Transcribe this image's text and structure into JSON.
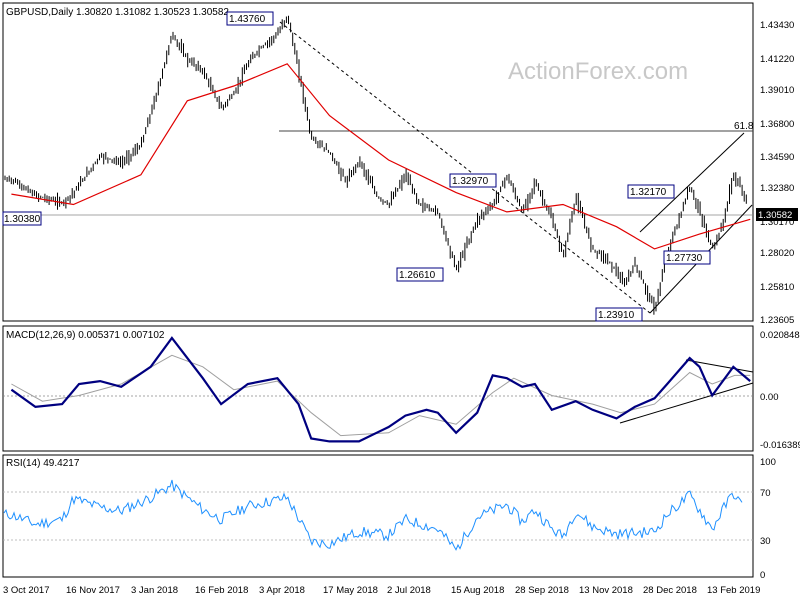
{
  "header": {
    "symbol_line": "GBPUSD,Daily  1.30820 1.31082 1.30523 1.30582",
    "watermark": "ActionForex.com"
  },
  "colors": {
    "candles": "#000000",
    "ma": "#e00000",
    "macd": "#000080",
    "signal": "#a0a0a0",
    "rsi": "#1e90ff",
    "price_box": "#000000"
  },
  "chart_data": [
    {
      "type": "candlestick",
      "title": "GBPUSD,Daily",
      "header_values": [
        "1.30820",
        "1.31082",
        "1.30523",
        "1.30582"
      ],
      "y_ticks": [
        "1.43430",
        "1.41220",
        "1.39010",
        "1.36800",
        "1.34590",
        "1.32380",
        "1.30170",
        "1.28020",
        "1.25810",
        "1.23605"
      ],
      "ylim": [
        1.232,
        1.444
      ],
      "current_price": "1.30582",
      "moving_average": true,
      "annotations": [
        "1.43760",
        "1.32970",
        "1.32170",
        "1.30380",
        "1.27730",
        "1.26610",
        "1.23910",
        "61.8"
      ],
      "close_path": [
        [
          "2017-10-03",
          1.327
        ],
        [
          "2017-10-20",
          1.316
        ],
        [
          "2017-11-08",
          1.311
        ],
        [
          "2017-11-16",
          1.318
        ],
        [
          "2017-12-05",
          1.343
        ],
        [
          "2017-12-20",
          1.338
        ],
        [
          "2018-01-03",
          1.35
        ],
        [
          "2018-01-15",
          1.388
        ],
        [
          "2018-01-25",
          1.425
        ],
        [
          "2018-02-05",
          1.408
        ],
        [
          "2018-02-16",
          1.4
        ],
        [
          "2018-03-01",
          1.375
        ],
        [
          "2018-03-10",
          1.385
        ],
        [
          "2018-03-20",
          1.405
        ],
        [
          "2018-03-28",
          1.415
        ],
        [
          "2018-04-10",
          1.425
        ],
        [
          "2018-04-17",
          1.4376
        ],
        [
          "2018-04-25",
          1.4
        ],
        [
          "2018-05-04",
          1.355
        ],
        [
          "2018-05-17",
          1.345
        ],
        [
          "2018-05-29",
          1.325
        ],
        [
          "2018-06-07",
          1.34
        ],
        [
          "2018-06-20",
          1.315
        ],
        [
          "2018-06-28",
          1.31
        ],
        [
          "2018-07-10",
          1.33
        ],
        [
          "2018-07-20",
          1.31
        ],
        [
          "2018-08-02",
          1.305
        ],
        [
          "2018-08-15",
          1.2661
        ],
        [
          "2018-08-30",
          1.3
        ],
        [
          "2018-09-10",
          1.31
        ],
        [
          "2018-09-20",
          1.3297
        ],
        [
          "2018-10-01",
          1.305
        ],
        [
          "2018-10-10",
          1.325
        ],
        [
          "2018-10-22",
          1.3
        ],
        [
          "2018-10-30",
          1.275
        ],
        [
          "2018-11-08",
          1.315
        ],
        [
          "2018-11-20",
          1.28
        ],
        [
          "2018-11-28",
          1.275
        ],
        [
          "2018-12-07",
          1.265
        ],
        [
          "2018-12-12",
          1.255
        ],
        [
          "2018-12-20",
          1.27
        ],
        [
          "2019-01-03",
          1.2391
        ],
        [
          "2019-01-12",
          1.2773
        ],
        [
          "2019-01-22",
          1.305
        ],
        [
          "2019-01-28",
          1.3217
        ],
        [
          "2019-02-04",
          1.305
        ],
        [
          "2019-02-13",
          1.28
        ],
        [
          "2019-02-20",
          1.295
        ],
        [
          "2019-02-28",
          1.33
        ],
        [
          "2019-03-06",
          1.32
        ],
        [
          "2019-03-12",
          1.3058
        ]
      ],
      "ma_path": [
        [
          "2017-10-03",
          1.317
        ],
        [
          "2017-11-16",
          1.31
        ],
        [
          "2018-01-03",
          1.33
        ],
        [
          "2018-02-05",
          1.38
        ],
        [
          "2018-03-10",
          1.39
        ],
        [
          "2018-04-17",
          1.405
        ],
        [
          "2018-05-17",
          1.37
        ],
        [
          "2018-06-28",
          1.34
        ],
        [
          "2018-08-15",
          1.318
        ],
        [
          "2018-09-20",
          1.305
        ],
        [
          "2018-10-30",
          1.31
        ],
        [
          "2018-12-07",
          1.295
        ],
        [
          "2019-01-03",
          1.28
        ],
        [
          "2019-02-04",
          1.29
        ],
        [
          "2019-03-12",
          1.3
        ]
      ]
    },
    {
      "type": "line",
      "title": "MACD(12,26,9) 0.005371 0.007102",
      "y_ticks": [
        "0.020848",
        "0.00",
        "-0.016389"
      ],
      "ylim": [
        -0.019,
        0.0235
      ],
      "series": [
        {
          "name": "MACD",
          "points": [
            [
              "2017-10-03",
              0.002
            ],
            [
              "2017-10-20",
              -0.004
            ],
            [
              "2017-11-08",
              -0.003
            ],
            [
              "2017-11-20",
              0.004
            ],
            [
              "2017-12-05",
              0.005
            ],
            [
              "2017-12-20",
              0.003
            ],
            [
              "2018-01-10",
              0.01
            ],
            [
              "2018-01-25",
              0.02
            ],
            [
              "2018-02-16",
              0.006
            ],
            [
              "2018-03-01",
              -0.003
            ],
            [
              "2018-03-20",
              0.004
            ],
            [
              "2018-04-10",
              0.006
            ],
            [
              "2018-04-25",
              -0.003
            ],
            [
              "2018-05-04",
              -0.015
            ],
            [
              "2018-05-17",
              -0.016
            ],
            [
              "2018-06-07",
              -0.016
            ],
            [
              "2018-06-28",
              -0.011
            ],
            [
              "2018-07-10",
              -0.007
            ],
            [
              "2018-07-25",
              -0.005
            ],
            [
              "2018-08-02",
              -0.006
            ],
            [
              "2018-08-15",
              -0.013
            ],
            [
              "2018-08-30",
              -0.006
            ],
            [
              "2018-09-10",
              0.007
            ],
            [
              "2018-09-20",
              0.006
            ],
            [
              "2018-10-01",
              0.003
            ],
            [
              "2018-10-10",
              0.004
            ],
            [
              "2018-10-22",
              -0.005
            ],
            [
              "2018-11-08",
              -0.002
            ],
            [
              "2018-11-20",
              -0.005
            ],
            [
              "2018-12-07",
              -0.008
            ],
            [
              "2018-12-20",
              -0.004
            ],
            [
              "2019-01-03",
              -0.001
            ],
            [
              "2019-01-12",
              0.004
            ],
            [
              "2019-01-28",
              0.013
            ],
            [
              "2019-02-04",
              0.01
            ],
            [
              "2019-02-13",
              0.0
            ],
            [
              "2019-02-28",
              0.01
            ],
            [
              "2019-03-12",
              0.005
            ]
          ]
        },
        {
          "name": "Signal",
          "points": [
            [
              "2017-10-03",
              0.004
            ],
            [
              "2017-10-25",
              -0.002
            ],
            [
              "2017-11-20",
              0.0
            ],
            [
              "2017-12-20",
              0.004
            ],
            [
              "2018-01-25",
              0.014
            ],
            [
              "2018-02-16",
              0.01
            ],
            [
              "2018-03-10",
              0.002
            ],
            [
              "2018-04-10",
              0.005
            ],
            [
              "2018-05-04",
              -0.006
            ],
            [
              "2018-05-25",
              -0.014
            ],
            [
              "2018-06-28",
              -0.013
            ],
            [
              "2018-07-20",
              -0.007
            ],
            [
              "2018-08-15",
              -0.01
            ],
            [
              "2018-09-10",
              0.001
            ],
            [
              "2018-09-25",
              0.006
            ],
            [
              "2018-10-22",
              0.0
            ],
            [
              "2018-11-20",
              -0.003
            ],
            [
              "2018-12-10",
              -0.006
            ],
            [
              "2019-01-03",
              -0.003
            ],
            [
              "2019-01-28",
              0.008
            ],
            [
              "2019-02-13",
              0.004
            ],
            [
              "2019-03-01",
              0.007
            ],
            [
              "2019-03-12",
              0.007
            ]
          ]
        }
      ]
    },
    {
      "type": "line",
      "title": "RSI(14) 49.4217",
      "y_ticks": [
        "100",
        "70",
        "30",
        "0"
      ],
      "ylim": [
        0,
        100
      ],
      "series": [
        {
          "name": "RSI",
          "points": [
            [
              "2017-10-03",
              52
            ],
            [
              "2017-10-20",
              44
            ],
            [
              "2017-11-08",
              48
            ],
            [
              "2017-11-16",
              65
            ],
            [
              "2017-12-05",
              58
            ],
            [
              "2017-12-20",
              55
            ],
            [
              "2018-01-10",
              66
            ],
            [
              "2018-01-25",
              76
            ],
            [
              "2018-02-16",
              56
            ],
            [
              "2018-03-01",
              48
            ],
            [
              "2018-03-20",
              59
            ],
            [
              "2018-04-17",
              66
            ],
            [
              "2018-05-04",
              30
            ],
            [
              "2018-05-17",
              28
            ],
            [
              "2018-06-07",
              38
            ],
            [
              "2018-06-28",
              35
            ],
            [
              "2018-07-10",
              48
            ],
            [
              "2018-08-02",
              40
            ],
            [
              "2018-08-15",
              23
            ],
            [
              "2018-08-30",
              50
            ],
            [
              "2018-09-20",
              60
            ],
            [
              "2018-10-01",
              46
            ],
            [
              "2018-10-10",
              56
            ],
            [
              "2018-10-22",
              40
            ],
            [
              "2018-10-30",
              34
            ],
            [
              "2018-11-08",
              55
            ],
            [
              "2018-11-20",
              42
            ],
            [
              "2018-12-07",
              36
            ],
            [
              "2019-01-03",
              38
            ],
            [
              "2019-01-12",
              52
            ],
            [
              "2019-01-28",
              68
            ],
            [
              "2019-02-13",
              40
            ],
            [
              "2019-02-20",
              55
            ],
            [
              "2019-02-28",
              70
            ],
            [
              "2019-03-12",
              49
            ]
          ]
        }
      ]
    }
  ],
  "x_ticks": [
    "3 Oct 2017",
    "16 Nov 2017",
    "3 Jan 2018",
    "16 Feb 2018",
    "3 Apr 2018",
    "17 May 2018",
    "2 Jul 2018",
    "15 Aug 2018",
    "28 Sep 2018",
    "13 Nov 2018",
    "28 Dec 2018",
    "13 Feb 2019"
  ]
}
